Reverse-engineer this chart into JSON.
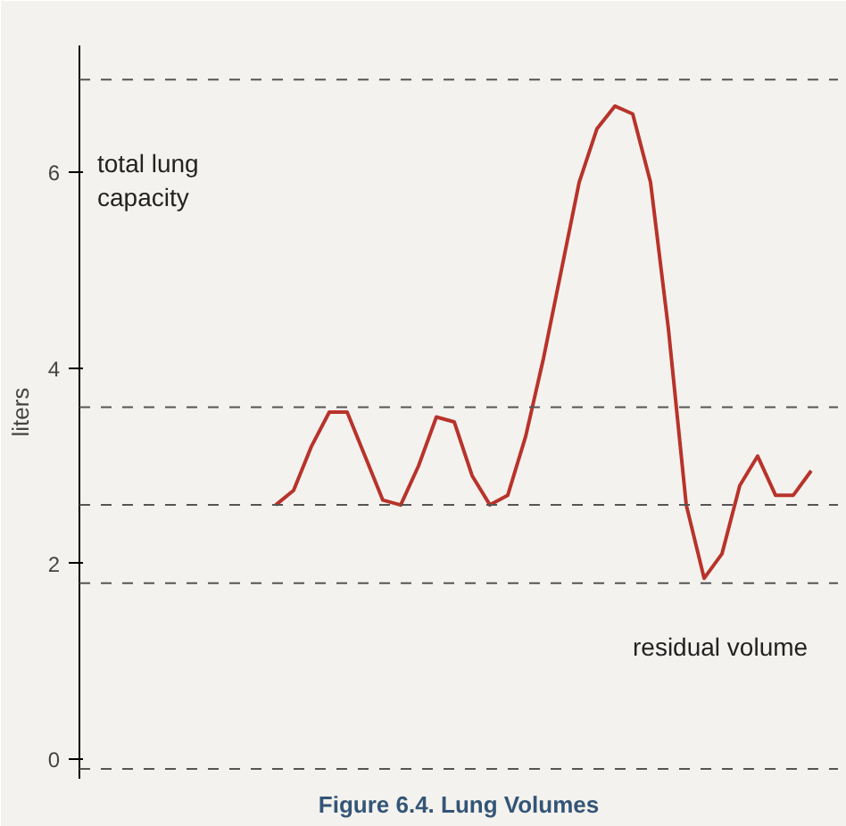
{
  "chart_data": {
    "type": "line",
    "title": "Figure 6.4. Lung Volumes",
    "ylabel": "liters",
    "categories": [
      null,
      null,
      null,
      null,
      null,
      null,
      null,
      null,
      null,
      null,
      null,
      null,
      null,
      null,
      null,
      null,
      null,
      null,
      null,
      null,
      null,
      null,
      null,
      null,
      null,
      null,
      null,
      null,
      null,
      null,
      null
    ],
    "series": [
      {
        "color": "#b8332b",
        "values": [
          2.6,
          2.75,
          3.2,
          3.55,
          3.55,
          3.1,
          2.65,
          2.6,
          3.0,
          3.5,
          3.45,
          2.9,
          2.6,
          2.7,
          3.3,
          4.1,
          5.0,
          5.9,
          6.45,
          6.68,
          6.6,
          5.9,
          4.4,
          2.6,
          1.85,
          2.1,
          2.8,
          3.1,
          2.7,
          2.7,
          2.95
        ]
      }
    ],
    "ylim": [
      -0.2,
      7.3
    ],
    "yticks": [
      0,
      2,
      4,
      6
    ],
    "ref_lines": [
      {
        "axis": "y",
        "value": 6.95,
        "line_style": "dashed",
        "color": "#555555"
      },
      {
        "axis": "y",
        "value": 3.6,
        "line_style": "dashed",
        "color": "#555555"
      },
      {
        "axis": "y",
        "value": 2.6,
        "line_style": "dashed",
        "color": "#555555"
      },
      {
        "axis": "y",
        "value": 1.8,
        "line_style": "dashed",
        "color": "#555555"
      },
      {
        "axis": "y",
        "value": -0.1,
        "line_style": "dashed",
        "color": "#555555"
      }
    ],
    "annotations": [
      "total lung capacity",
      "residual volume"
    ],
    "grid": false,
    "tick_labels": "y",
    "line_style": "solid",
    "marker": "none"
  }
}
